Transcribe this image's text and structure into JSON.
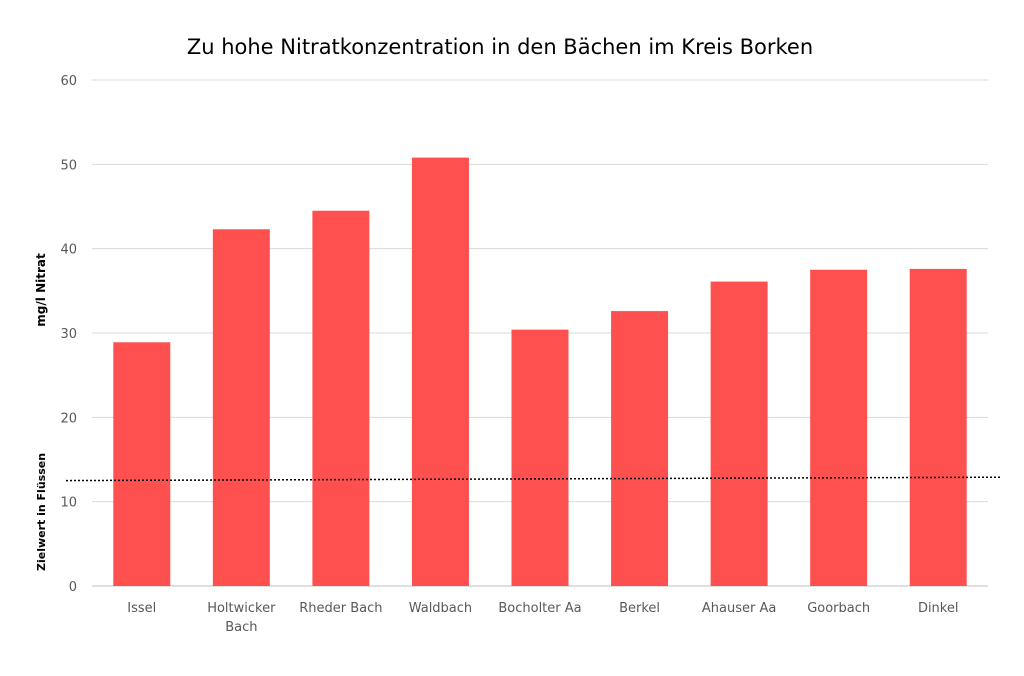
{
  "chart_data": {
    "type": "bar",
    "title": "Zu hohe Nitratkonzentration in den Bächen im Kreis Borken",
    "ylabel": "mg/l Nitrat",
    "xlabel": "",
    "categories": [
      "Issel",
      "Holtwicker Bach",
      "Rheder Bach",
      "Waldbach",
      "Bocholter Aa",
      "Berkel",
      "Ahauser Aa",
      "Goorbach",
      "Dinkel"
    ],
    "values": [
      28.9,
      42.3,
      44.5,
      50.8,
      30.4,
      32.6,
      36.1,
      37.5,
      37.6
    ],
    "ylim": [
      0,
      60
    ],
    "yticks": [
      0,
      10,
      20,
      30,
      40,
      50,
      60
    ],
    "grid": true,
    "bar_color": "#ff5050",
    "reference_line": {
      "label": "Zielwert in Flüssen",
      "value_start": 12.5,
      "value_end": 12.9,
      "style": "dotted"
    }
  }
}
